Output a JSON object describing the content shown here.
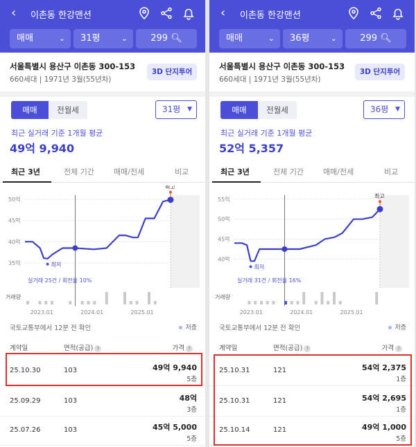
{
  "screens": [
    {
      "header": {
        "title": "이촌동 한강맨션",
        "deal_type": "매매",
        "area": "31평",
        "price_filter": "299"
      },
      "info": {
        "address": "서울특별시 용산구 이촌동 300-153",
        "details": "660세대 | 1971년 3월(55년차)",
        "tour_button": "3D 단지투어"
      },
      "segment": {
        "sale": "매매",
        "rent": "전월세"
      },
      "area_select": "31평",
      "summary": {
        "label": "최근 실거래 기준 1개월 평균",
        "price": "49억 9,940"
      },
      "tabs": [
        "최근 3년",
        "전체 기간",
        "매매/전세",
        "비교"
      ],
      "chart_data": {
        "type": "line",
        "y_ticks": [
          "50억",
          "45억",
          "40억",
          "35억"
        ],
        "ylim": [
          34,
          51
        ],
        "x_ticks": [
          "2023.01",
          "2024.01",
          "2025.01"
        ],
        "series": [
          {
            "x": [
              0,
              0.6,
              1.2,
              1.5,
              1.8,
              2.2,
              3.0,
              4.0,
              5.5,
              6.5,
              7.5,
              8.0,
              8.6,
              9.0,
              9.6,
              10.3,
              11.0,
              11.6
            ],
            "y": [
              40,
              40,
              38.5,
              36.1,
              36.0,
              37.0,
              38.5,
              38.5,
              38.2,
              38.5,
              41.5,
              41.5,
              41.0,
              41.0,
              45.5,
              45.5,
              49.5,
              49.9
            ]
          }
        ],
        "labels": {
          "high": "최고",
          "low": "최저",
          "volume": "거래량"
        },
        "volume_note": "실거래 25건 / 회전율 10%",
        "volume": [
          1,
          0,
          1,
          1,
          1,
          0,
          0,
          1,
          0,
          1,
          1,
          1,
          0,
          2,
          0,
          0,
          2,
          1,
          1,
          0,
          2,
          1,
          0,
          0
        ]
      },
      "source": "국토교통부에서 12분 전 확인",
      "legend": "저층",
      "table": {
        "headers": {
          "date": "계약일",
          "area": "면적(공급)",
          "price": "가격"
        },
        "rows": [
          {
            "date": "25.10.30",
            "area": "103",
            "price": "49억 9,940",
            "floor": "5층"
          },
          {
            "date": "25.09.29",
            "area": "103",
            "price": "48억",
            "floor": "3층"
          },
          {
            "date": "25.07.26",
            "area": "103",
            "price": "45억 5,000",
            "floor": "5층"
          }
        ]
      }
    },
    {
      "header": {
        "title": "이촌동 한강맨션",
        "deal_type": "매매",
        "area": "36평",
        "price_filter": "299"
      },
      "info": {
        "address": "서울특별시 용산구 이촌동 300-153",
        "details": "660세대 | 1971년 3월(55년차)",
        "tour_button": "3D 단지투어"
      },
      "segment": {
        "sale": "매매",
        "rent": "전월세"
      },
      "area_select": "36평",
      "summary": {
        "label": "최근 실거래 기준 1개월 평균",
        "price": "52억 5,357"
      },
      "tabs": [
        "최근 3년",
        "전체 기간",
        "매매/전세",
        "비교"
      ],
      "chart_data": {
        "type": "line",
        "y_ticks": [
          "55억",
          "50억",
          "45억",
          "40억"
        ],
        "ylim": [
          38,
          56
        ],
        "x_ticks": [
          "2023.01",
          "2024.01",
          "2025.01"
        ],
        "series": [
          {
            "x": [
              0,
              0.6,
              1.0,
              1.3,
              1.6,
              2.0,
              2.5,
              4.0,
              5.2,
              6.5,
              7.2,
              8.0,
              8.6,
              9.5,
              10.2,
              11.0,
              11.6
            ],
            "y": [
              44,
              44,
              43.5,
              39.5,
              39.5,
              42.5,
              42.5,
              42.5,
              42.5,
              43.5,
              45.0,
              45.5,
              46.5,
              50.0,
              50.0,
              50.5,
              52.5
            ]
          }
        ],
        "labels": {
          "high": "최고",
          "low": "최저",
          "volume": "거래량"
        },
        "volume_note": "실거래 31건 / 회전율 16%",
        "volume": [
          0,
          0,
          1,
          1,
          1,
          1,
          1,
          0,
          1,
          1,
          1,
          2,
          0,
          1,
          2,
          1,
          2,
          1,
          0,
          0,
          0,
          0,
          0,
          2
        ]
      },
      "source": "국토교통부에서 12분 전 확인",
      "legend": "저층",
      "table": {
        "headers": {
          "date": "계약일",
          "area": "면적(공급)",
          "price": "가격"
        },
        "rows": [
          {
            "date": "25.10.31",
            "area": "121",
            "price": "54억 2,375",
            "floor": "1층"
          },
          {
            "date": "25.10.31",
            "area": "121",
            "price": "54억 2,695",
            "floor": "1층"
          },
          {
            "date": "25.10.14",
            "area": "121",
            "price": "49억 1,000",
            "floor": "5층"
          }
        ]
      }
    }
  ],
  "colors": {
    "brand": "#4b4fd8",
    "line": "#3b3fc8",
    "highlight": "#e02b2b",
    "high_marker": "#e8562a"
  }
}
